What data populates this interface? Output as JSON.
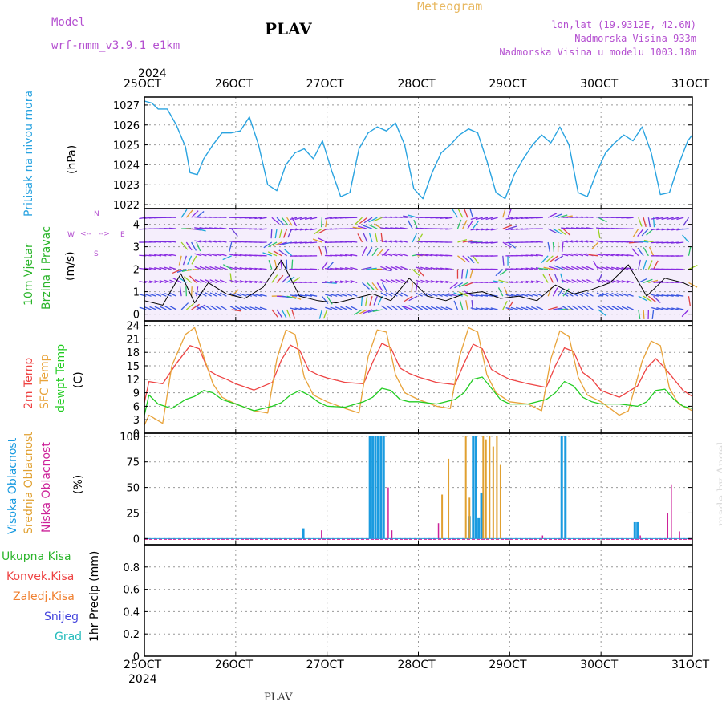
{
  "header": {
    "model_label": "Model",
    "model_name": "wrf-nmm_v3.9.1  e1km",
    "title": "PLAV",
    "chart_title": "Meteogram",
    "coords": "lon,lat (19.9312E, 42.6N)",
    "elevation": "Nadmorska Visina 933m",
    "model_elevation": "Nadmorska Visina u modelu 1003.18m",
    "credit": "made by Angel",
    "footer": "PLAV"
  },
  "colors": {
    "pressure": "#29a3e0",
    "t2m": "#ee4444",
    "sfc": "#e8a33a",
    "dew": "#22cc22",
    "cloud_high": "#1a9be0",
    "cloud_mid": "#e0a030",
    "cloud_low": "#cc2299",
    "header_model": "#b44fd0",
    "header_title": "#e8b860",
    "wind_label": "#2bb52b",
    "wind_bg": "#8a2be2"
  },
  "time_axis": {
    "year": "2024",
    "ticks": [
      "25OCT",
      "26OCT",
      "27OCT",
      "28OCT",
      "29OCT",
      "30OCT",
      "31OCT"
    ],
    "start_day": 25,
    "end_day": 31
  },
  "chart_data": [
    {
      "type": "line",
      "panel": "pressure",
      "ylabel_title": "Pritisak na nivou mora",
      "unit": "(hPa)",
      "ylim": [
        1021.8,
        1027.4
      ],
      "yticks": [
        "1022",
        "1023",
        "1024",
        "1025",
        "1026",
        "1027"
      ],
      "series": [
        {
          "x": [
            25.0,
            25.08,
            25.15,
            25.25,
            25.35,
            25.45,
            25.5,
            25.58,
            25.65,
            25.75,
            25.85,
            25.95,
            26.05,
            26.15,
            26.25,
            26.35,
            26.45,
            26.55,
            26.65,
            26.75,
            26.85,
            26.95,
            27.05,
            27.15,
            27.25,
            27.35,
            27.45,
            27.55,
            27.65,
            27.75,
            27.85,
            27.95,
            28.05,
            28.15,
            28.25,
            28.35,
            28.45,
            28.55,
            28.65,
            28.75,
            28.85,
            28.95,
            29.05,
            29.15,
            29.25,
            29.35,
            29.45,
            29.55,
            29.65,
            29.75,
            29.85,
            29.95,
            30.05,
            30.15,
            30.25,
            30.35,
            30.45,
            30.55,
            30.65,
            30.75,
            30.85,
            30.95,
            31.0
          ],
          "values": [
            1027.2,
            1027.1,
            1026.8,
            1026.8,
            1026.0,
            1024.9,
            1023.6,
            1023.5,
            1024.3,
            1025.0,
            1025.6,
            1025.6,
            1025.7,
            1026.4,
            1025.0,
            1023.0,
            1022.7,
            1024.0,
            1024.6,
            1024.8,
            1024.3,
            1025.2,
            1023.7,
            1022.4,
            1022.6,
            1024.8,
            1025.6,
            1025.9,
            1025.7,
            1026.1,
            1025.0,
            1022.8,
            1022.3,
            1023.6,
            1024.6,
            1025.0,
            1025.5,
            1025.8,
            1025.6,
            1024.2,
            1022.6,
            1022.3,
            1023.5,
            1024.3,
            1025.0,
            1025.5,
            1025.1,
            1025.9,
            1025.0,
            1022.6,
            1022.4,
            1023.6,
            1024.6,
            1025.1,
            1025.5,
            1025.2,
            1025.9,
            1024.6,
            1022.5,
            1022.6,
            1024.0,
            1025.2,
            1025.5
          ]
        }
      ]
    },
    {
      "type": "line",
      "panel": "wind",
      "ylabel_title": "10m Vjetar",
      "ylabel_sub": "Brzina i Pravac",
      "unit": "(m/s)",
      "direction_legend": {
        "top": "N",
        "left": "W",
        "right": "E",
        "bottom": "S"
      },
      "ylim": [
        -0.3,
        4.7
      ],
      "yticks": [
        "0",
        "1",
        "2",
        "3",
        "4"
      ],
      "series": [
        {
          "x": [
            25.0,
            25.2,
            25.4,
            25.55,
            25.7,
            25.9,
            26.1,
            26.3,
            26.5,
            26.7,
            26.9,
            27.1,
            27.3,
            27.5,
            27.7,
            27.9,
            28.1,
            28.3,
            28.5,
            28.7,
            28.9,
            29.1,
            29.3,
            29.5,
            29.7,
            29.9,
            30.1,
            30.3,
            30.5,
            30.7,
            30.9,
            31.0
          ],
          "values": [
            0.6,
            0.4,
            1.8,
            0.5,
            1.4,
            0.9,
            0.7,
            1.2,
            2.4,
            0.8,
            0.6,
            0.5,
            0.7,
            0.9,
            0.6,
            1.6,
            0.8,
            0.6,
            0.9,
            1.0,
            0.7,
            0.8,
            0.6,
            1.3,
            0.9,
            1.1,
            1.4,
            2.2,
            0.8,
            1.6,
            1.4,
            1.2
          ]
        }
      ]
    },
    {
      "type": "line",
      "panel": "temperature",
      "labels": [
        "2m Temp",
        "SFC Temp",
        "dewpt Temp"
      ],
      "unit": "(C)",
      "ylim": [
        0,
        25
      ],
      "yticks": [
        "0",
        "3",
        "6",
        "9",
        "12",
        "15",
        "18",
        "21",
        "24"
      ],
      "series": [
        {
          "name": "2m Temp",
          "color_key": "t2m",
          "x": [
            25.0,
            25.05,
            25.2,
            25.35,
            25.5,
            25.6,
            25.7,
            25.8,
            25.9,
            26.0,
            26.2,
            26.4,
            26.5,
            26.6,
            26.7,
            26.8,
            26.9,
            27.0,
            27.2,
            27.4,
            27.5,
            27.6,
            27.7,
            27.8,
            27.9,
            28.0,
            28.2,
            28.4,
            28.5,
            28.6,
            28.7,
            28.8,
            28.9,
            29.0,
            29.2,
            29.4,
            29.5,
            29.6,
            29.7,
            29.8,
            29.9,
            30.0,
            30.2,
            30.4,
            30.5,
            30.6,
            30.7,
            30.8,
            30.9,
            31.0
          ],
          "values": [
            6.8,
            11.5,
            11.0,
            15.5,
            19.5,
            18.8,
            14.0,
            12.8,
            12.0,
            11.0,
            9.6,
            11.3,
            16.3,
            19.6,
            18.5,
            14.0,
            13.0,
            12.3,
            11.3,
            11.0,
            15.8,
            20.0,
            19.0,
            14.5,
            13.3,
            12.5,
            11.3,
            10.8,
            15.5,
            19.8,
            18.8,
            14.2,
            13.0,
            12.0,
            11.0,
            10.2,
            15.0,
            19.0,
            18.2,
            13.5,
            12.0,
            9.5,
            8.0,
            10.5,
            14.5,
            16.6,
            14.5,
            12.0,
            9.5,
            8.2
          ]
        },
        {
          "name": "SFC Temp",
          "color_key": "sfc",
          "x": [
            25.0,
            25.05,
            25.2,
            25.3,
            25.45,
            25.55,
            25.65,
            25.75,
            25.85,
            26.0,
            26.2,
            26.35,
            26.45,
            26.55,
            26.65,
            26.75,
            26.85,
            27.0,
            27.2,
            27.35,
            27.45,
            27.55,
            27.65,
            27.75,
            27.85,
            28.0,
            28.2,
            28.35,
            28.45,
            28.55,
            28.65,
            28.75,
            28.85,
            29.0,
            29.2,
            29.35,
            29.45,
            29.55,
            29.65,
            29.75,
            29.85,
            30.0,
            30.1,
            30.2,
            30.3,
            30.45,
            30.55,
            30.65,
            30.75,
            30.85,
            31.0
          ],
          "values": [
            1.8,
            4.0,
            2.2,
            15.0,
            22.0,
            23.5,
            17.0,
            11.0,
            8.0,
            6.5,
            5.0,
            4.5,
            16.5,
            23.0,
            22.0,
            12.5,
            8.5,
            7.0,
            5.5,
            4.5,
            17.0,
            23.0,
            22.5,
            13.0,
            9.0,
            7.5,
            6.0,
            5.5,
            17.0,
            23.5,
            22.5,
            13.0,
            9.0,
            7.0,
            6.5,
            5.0,
            16.5,
            22.8,
            21.5,
            12.5,
            8.5,
            7.0,
            5.5,
            4.0,
            5.0,
            16.0,
            20.5,
            19.5,
            10.0,
            6.5,
            5.0
          ]
        },
        {
          "name": "dewpt Temp",
          "color_key": "dew",
          "x": [
            25.0,
            25.05,
            25.15,
            25.3,
            25.45,
            25.55,
            25.65,
            25.75,
            25.85,
            26.0,
            26.2,
            26.4,
            26.5,
            26.6,
            26.7,
            26.8,
            26.9,
            27.0,
            27.2,
            27.4,
            27.5,
            27.6,
            27.7,
            27.8,
            27.9,
            28.0,
            28.2,
            28.4,
            28.5,
            28.6,
            28.7,
            28.8,
            28.9,
            29.0,
            29.2,
            29.4,
            29.5,
            29.6,
            29.7,
            29.8,
            29.9,
            30.0,
            30.2,
            30.4,
            30.5,
            30.6,
            30.7,
            30.8,
            30.9,
            31.0
          ],
          "values": [
            4.0,
            8.5,
            6.5,
            5.5,
            7.5,
            8.2,
            9.5,
            9.0,
            7.5,
            6.5,
            5.0,
            6.0,
            6.8,
            8.5,
            9.5,
            8.5,
            7.0,
            6.0,
            5.8,
            7.0,
            8.0,
            10.0,
            9.5,
            7.5,
            7.0,
            7.0,
            6.5,
            7.5,
            9.0,
            12.0,
            12.5,
            10.0,
            7.5,
            6.5,
            6.5,
            7.5,
            9.0,
            11.5,
            10.5,
            8.0,
            7.0,
            6.5,
            6.5,
            6.0,
            7.0,
            9.5,
            9.8,
            7.5,
            6.0,
            5.5
          ]
        }
      ]
    },
    {
      "type": "bar",
      "panel": "cloud",
      "labels": [
        "Visoka Oblacnost",
        "Srednja Oblacnost",
        "Niska Oblacnost"
      ],
      "unit": "(%)",
      "ylim": [
        -6,
        103
      ],
      "yticks": [
        "0",
        "25",
        "50",
        "75",
        "100"
      ],
      "series": [
        {
          "name": "Visoka Oblacnost",
          "color_key": "cloud_high",
          "x": [
            26.74,
            27.47,
            27.5,
            27.53,
            27.56,
            27.59,
            27.62,
            28.56,
            28.6,
            28.63,
            28.66,
            28.69,
            29.57,
            29.61,
            30.37,
            30.4
          ],
          "values": [
            10,
            100,
            100,
            100,
            100,
            100,
            100,
            22,
            100,
            100,
            20,
            45,
            100,
            100,
            16,
            16
          ]
        },
        {
          "name": "Srednja Oblacnost",
          "color_key": "cloud_mid",
          "x": [
            28.26,
            28.33,
            28.52,
            28.56,
            28.71,
            28.74,
            28.78,
            28.82,
            28.86,
            28.9
          ],
          "values": [
            43,
            78,
            100,
            40,
            100,
            97,
            100,
            90,
            100,
            72
          ]
        },
        {
          "name": "Niska Oblacnost",
          "color_key": "cloud_low",
          "x": [
            26.94,
            27.67,
            27.71,
            28.22,
            29.36,
            30.43,
            30.73,
            30.77,
            30.86,
            31.41
          ],
          "values": [
            8,
            50,
            8,
            15,
            3,
            3,
            25,
            53,
            7,
            10
          ]
        }
      ]
    },
    {
      "type": "bar",
      "panel": "precip",
      "labels": [
        "Ukupna Kisa",
        "Konvek.Kisa",
        "Zaledj.Kisa",
        "Snijeg",
        "Grad"
      ],
      "unit": "1hr Precip (mm)",
      "ylim": [
        0,
        1.0
      ],
      "yticks": [
        "0",
        "0.2",
        "0.4",
        "0.6",
        "0.8"
      ],
      "series": []
    }
  ]
}
